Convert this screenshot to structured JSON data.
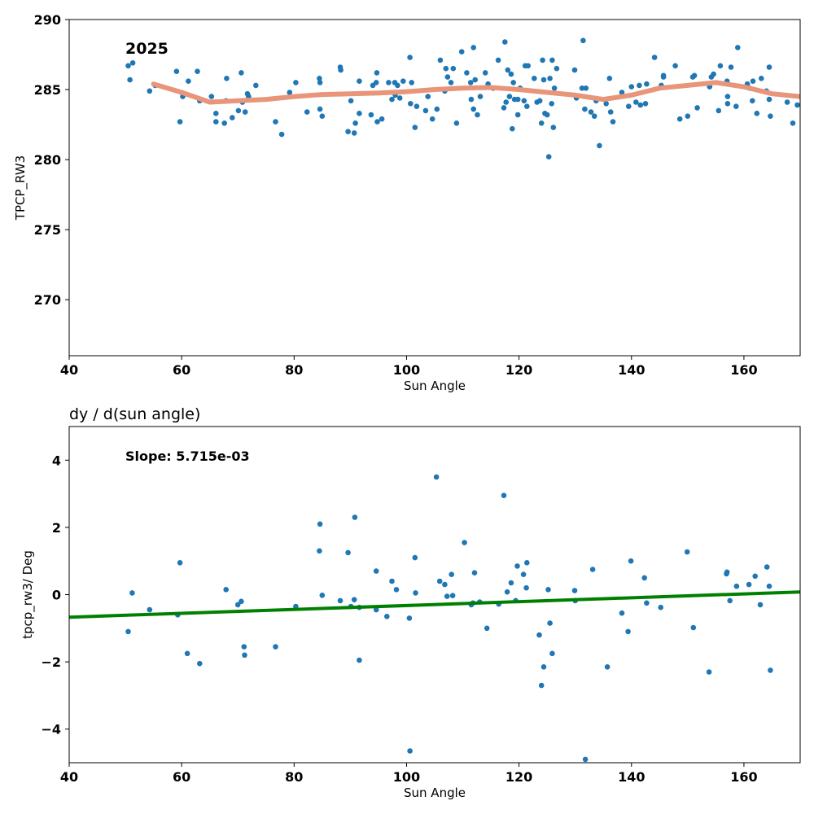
{
  "chart_data": [
    {
      "type": "scatter",
      "title": "",
      "annotation": "2025",
      "xlabel": "Sun Angle",
      "ylabel": "TPCP_RW3",
      "xlim": [
        40,
        170
      ],
      "ylim": [
        266,
        290
      ],
      "xticks": [
        40,
        60,
        80,
        100,
        120,
        140,
        160
      ],
      "yticks": [
        270,
        275,
        280,
        285,
        290
      ],
      "grid": false,
      "colors": {
        "points": "#1f77b4",
        "smooth_line": "#e8957a"
      },
      "points": [
        [
          50.5,
          286.7
        ],
        [
          51.3,
          286.9
        ],
        [
          50.8,
          285.7
        ],
        [
          54.3,
          284.9
        ],
        [
          55.3,
          285.3
        ],
        [
          59.1,
          286.3
        ],
        [
          59.7,
          282.7
        ],
        [
          60.2,
          284.5
        ],
        [
          61.2,
          285.6
        ],
        [
          62.8,
          286.3
        ],
        [
          63.2,
          284.2
        ],
        [
          65.3,
          284.5
        ],
        [
          66.1,
          283.3
        ],
        [
          66.1,
          282.7
        ],
        [
          67.6,
          282.6
        ],
        [
          67.9,
          284.2
        ],
        [
          68.0,
          285.8
        ],
        [
          69.0,
          283.0
        ],
        [
          70.1,
          283.5
        ],
        [
          70.6,
          286.2
        ],
        [
          70.8,
          284.1
        ],
        [
          71.3,
          283.4
        ],
        [
          71.7,
          284.7
        ],
        [
          71.9,
          284.5
        ],
        [
          73.2,
          285.3
        ],
        [
          76.7,
          282.7
        ],
        [
          77.8,
          281.8
        ],
        [
          79.2,
          284.8
        ],
        [
          80.3,
          285.5
        ],
        [
          82.3,
          283.4
        ],
        [
          84.5,
          285.8
        ],
        [
          84.6,
          283.6
        ],
        [
          84.6,
          285.5
        ],
        [
          85.0,
          283.1
        ],
        [
          88.2,
          286.6
        ],
        [
          88.3,
          286.4
        ],
        [
          89.6,
          282.0
        ],
        [
          90.1,
          284.2
        ],
        [
          90.7,
          281.9
        ],
        [
          90.9,
          282.6
        ],
        [
          91.6,
          283.3
        ],
        [
          91.6,
          285.6
        ],
        [
          93.7,
          283.2
        ],
        [
          94.0,
          285.3
        ],
        [
          94.6,
          285.5
        ],
        [
          94.7,
          286.2
        ],
        [
          94.8,
          282.7
        ],
        [
          95.6,
          282.9
        ],
        [
          96.8,
          285.5
        ],
        [
          97.4,
          284.3
        ],
        [
          97.9,
          285.5
        ],
        [
          98.0,
          284.6
        ],
        [
          98.4,
          285.3
        ],
        [
          98.8,
          284.4
        ],
        [
          99.4,
          285.6
        ],
        [
          100.6,
          287.3
        ],
        [
          100.7,
          284.0
        ],
        [
          100.9,
          285.5
        ],
        [
          101.5,
          282.3
        ],
        [
          101.8,
          283.8
        ],
        [
          103.4,
          283.5
        ],
        [
          103.8,
          284.5
        ],
        [
          104.6,
          282.9
        ],
        [
          105.4,
          283.6
        ],
        [
          106.0,
          287.1
        ],
        [
          106.8,
          284.9
        ],
        [
          107.0,
          286.5
        ],
        [
          107.3,
          285.9
        ],
        [
          107.9,
          285.5
        ],
        [
          108.3,
          286.5
        ],
        [
          108.9,
          282.6
        ],
        [
          109.8,
          287.7
        ],
        [
          110.7,
          286.2
        ],
        [
          111.4,
          285.5
        ],
        [
          111.5,
          284.3
        ],
        [
          111.9,
          283.6
        ],
        [
          111.9,
          288.0
        ],
        [
          112.2,
          285.7
        ],
        [
          112.6,
          283.2
        ],
        [
          113.1,
          284.5
        ],
        [
          114.0,
          286.2
        ],
        [
          114.5,
          285.4
        ],
        [
          115.4,
          285.1
        ],
        [
          116.3,
          287.1
        ],
        [
          117.3,
          283.7
        ],
        [
          117.5,
          288.4
        ],
        [
          117.7,
          284.1
        ],
        [
          118.0,
          286.4
        ],
        [
          118.3,
          284.5
        ],
        [
          118.6,
          286.1
        ],
        [
          118.8,
          282.2
        ],
        [
          119.0,
          285.5
        ],
        [
          119.2,
          284.3
        ],
        [
          119.8,
          283.2
        ],
        [
          119.8,
          284.3
        ],
        [
          120.2,
          285.1
        ],
        [
          120.9,
          284.2
        ],
        [
          121.1,
          286.7
        ],
        [
          121.4,
          283.8
        ],
        [
          121.6,
          286.7
        ],
        [
          122.7,
          285.8
        ],
        [
          123.2,
          284.1
        ],
        [
          123.7,
          284.2
        ],
        [
          124.0,
          282.6
        ],
        [
          124.2,
          287.1
        ],
        [
          124.4,
          285.7
        ],
        [
          124.6,
          283.3
        ],
        [
          125.0,
          283.2
        ],
        [
          125.3,
          280.2
        ],
        [
          125.5,
          285.8
        ],
        [
          125.8,
          284.0
        ],
        [
          125.9,
          287.1
        ],
        [
          126.1,
          282.3
        ],
        [
          126.3,
          285.1
        ],
        [
          126.7,
          286.5
        ],
        [
          129.9,
          286.4
        ],
        [
          130.2,
          284.4
        ],
        [
          131.2,
          285.1
        ],
        [
          131.4,
          288.5
        ],
        [
          131.7,
          283.6
        ],
        [
          131.9,
          285.1
        ],
        [
          132.8,
          283.4
        ],
        [
          133.4,
          283.1
        ],
        [
          133.7,
          284.2
        ],
        [
          134.3,
          281.0
        ],
        [
          135.5,
          284.0
        ],
        [
          136.1,
          285.8
        ],
        [
          136.3,
          283.4
        ],
        [
          136.7,
          282.7
        ],
        [
          138.3,
          284.8
        ],
        [
          139.5,
          283.8
        ],
        [
          140.0,
          285.2
        ],
        [
          140.8,
          284.1
        ],
        [
          141.4,
          285.3
        ],
        [
          141.6,
          283.9
        ],
        [
          142.5,
          284.0
        ],
        [
          142.7,
          285.4
        ],
        [
          144.1,
          287.3
        ],
        [
          145.3,
          285.3
        ],
        [
          145.7,
          285.9
        ],
        [
          145.7,
          286.0
        ],
        [
          147.8,
          286.7
        ],
        [
          148.6,
          282.9
        ],
        [
          150.0,
          283.1
        ],
        [
          150.9,
          285.9
        ],
        [
          151.2,
          286.0
        ],
        [
          151.7,
          283.7
        ],
        [
          153.9,
          285.2
        ],
        [
          154.2,
          285.9
        ],
        [
          154.6,
          286.1
        ],
        [
          155.5,
          283.5
        ],
        [
          155.8,
          286.7
        ],
        [
          157.0,
          285.6
        ],
        [
          157.1,
          284.5
        ],
        [
          157.1,
          284.0
        ],
        [
          157.7,
          286.6
        ],
        [
          158.6,
          283.8
        ],
        [
          158.9,
          288.0
        ],
        [
          160.6,
          285.4
        ],
        [
          161.0,
          285.1
        ],
        [
          161.5,
          284.2
        ],
        [
          161.6,
          285.6
        ],
        [
          162.3,
          283.3
        ],
        [
          163.1,
          285.8
        ],
        [
          164.0,
          284.9
        ],
        [
          164.5,
          286.6
        ],
        [
          164.5,
          284.3
        ],
        [
          164.7,
          283.1
        ],
        [
          167.7,
          284.1
        ],
        [
          168.7,
          282.6
        ],
        [
          169.5,
          283.9
        ]
      ],
      "smooth_line": [
        [
          55,
          285.4
        ],
        [
          60,
          284.8
        ],
        [
          65,
          284.1
        ],
        [
          70,
          284.2
        ],
        [
          75,
          284.3
        ],
        [
          80,
          284.5
        ],
        [
          85,
          284.65
        ],
        [
          90,
          284.7
        ],
        [
          95,
          284.75
        ],
        [
          100,
          284.85
        ],
        [
          105,
          285.0
        ],
        [
          110,
          285.1
        ],
        [
          115,
          285.15
        ],
        [
          120,
          285.0
        ],
        [
          125,
          284.8
        ],
        [
          130,
          284.6
        ],
        [
          135,
          284.3
        ],
        [
          140,
          284.6
        ],
        [
          145,
          285.1
        ],
        [
          150,
          285.3
        ],
        [
          155,
          285.5
        ],
        [
          160,
          285.2
        ],
        [
          165,
          284.7
        ],
        [
          170,
          284.5
        ]
      ]
    },
    {
      "type": "scatter",
      "title": "dy / d(sun angle)",
      "annotation": "Slope: 5.715e-03",
      "xlabel": "Sun Angle",
      "ylabel": "tpcp_rw3/ Deg",
      "xlim": [
        40,
        170
      ],
      "ylim": [
        -5,
        5
      ],
      "xticks": [
        40,
        60,
        80,
        100,
        120,
        140,
        160
      ],
      "yticks": [
        -4,
        -2,
        0,
        2,
        4
      ],
      "grid": false,
      "colors": {
        "points": "#1f77b4",
        "fit_line": "#008000"
      },
      "points": [
        [
          50.5,
          -1.1
        ],
        [
          51.2,
          0.05
        ],
        [
          54.3,
          -0.45
        ],
        [
          59.3,
          -0.6
        ],
        [
          59.7,
          0.95
        ],
        [
          61.0,
          -1.75
        ],
        [
          63.2,
          -2.05
        ],
        [
          67.9,
          0.15
        ],
        [
          70.0,
          -0.3
        ],
        [
          70.6,
          -0.2
        ],
        [
          71.1,
          -1.55
        ],
        [
          71.2,
          -1.8
        ],
        [
          76.7,
          -1.55
        ],
        [
          80.3,
          -0.35
        ],
        [
          84.5,
          1.3
        ],
        [
          84.6,
          2.1
        ],
        [
          85.0,
          -0.02
        ],
        [
          88.2,
          -0.18
        ],
        [
          89.6,
          1.25
        ],
        [
          90.1,
          -0.35
        ],
        [
          90.7,
          -0.15
        ],
        [
          90.8,
          2.3
        ],
        [
          91.6,
          -0.38
        ],
        [
          91.6,
          -1.95
        ],
        [
          94.6,
          0.7
        ],
        [
          94.6,
          -0.45
        ],
        [
          96.5,
          -0.65
        ],
        [
          97.4,
          0.4
        ],
        [
          98.2,
          0.15
        ],
        [
          100.5,
          -0.7
        ],
        [
          100.6,
          -4.65
        ],
        [
          101.5,
          1.1
        ],
        [
          101.6,
          0.05
        ],
        [
          105.3,
          3.5
        ],
        [
          105.9,
          0.4
        ],
        [
          106.8,
          0.3
        ],
        [
          107.2,
          -0.05
        ],
        [
          108.0,
          0.6
        ],
        [
          108.2,
          -0.03
        ],
        [
          110.3,
          1.55
        ],
        [
          111.5,
          -0.3
        ],
        [
          111.8,
          -0.25
        ],
        [
          112.1,
          0.65
        ],
        [
          113.0,
          -0.22
        ],
        [
          114.3,
          -1.0
        ],
        [
          116.4,
          -0.28
        ],
        [
          117.3,
          2.95
        ],
        [
          117.9,
          0.08
        ],
        [
          118.6,
          0.35
        ],
        [
          119.4,
          -0.18
        ],
        [
          119.7,
          0.85
        ],
        [
          120.8,
          0.6
        ],
        [
          121.3,
          0.2
        ],
        [
          121.4,
          0.95
        ],
        [
          123.6,
          -1.2
        ],
        [
          124.0,
          -2.7
        ],
        [
          124.4,
          -2.15
        ],
        [
          125.2,
          0.15
        ],
        [
          125.5,
          -0.85
        ],
        [
          125.9,
          -1.75
        ],
        [
          129.9,
          0.12
        ],
        [
          130.0,
          -0.18
        ],
        [
          131.8,
          -4.9
        ],
        [
          133.1,
          0.75
        ],
        [
          135.7,
          -2.15
        ],
        [
          138.3,
          -0.55
        ],
        [
          139.4,
          -1.1
        ],
        [
          139.9,
          1.0
        ],
        [
          142.3,
          0.5
        ],
        [
          142.7,
          -0.25
        ],
        [
          145.2,
          -0.38
        ],
        [
          149.9,
          1.27
        ],
        [
          151.0,
          -0.98
        ],
        [
          153.8,
          -2.3
        ],
        [
          156.9,
          0.62
        ],
        [
          157.0,
          0.67
        ],
        [
          157.5,
          -0.18
        ],
        [
          158.7,
          0.25
        ],
        [
          160.9,
          0.3
        ],
        [
          162.0,
          0.55
        ],
        [
          162.9,
          -0.3
        ],
        [
          164.1,
          0.82
        ],
        [
          164.5,
          0.25
        ],
        [
          164.7,
          -2.25
        ]
      ],
      "fit_line": [
        [
          40,
          -0.67
        ],
        [
          170,
          0.08
        ]
      ]
    }
  ]
}
